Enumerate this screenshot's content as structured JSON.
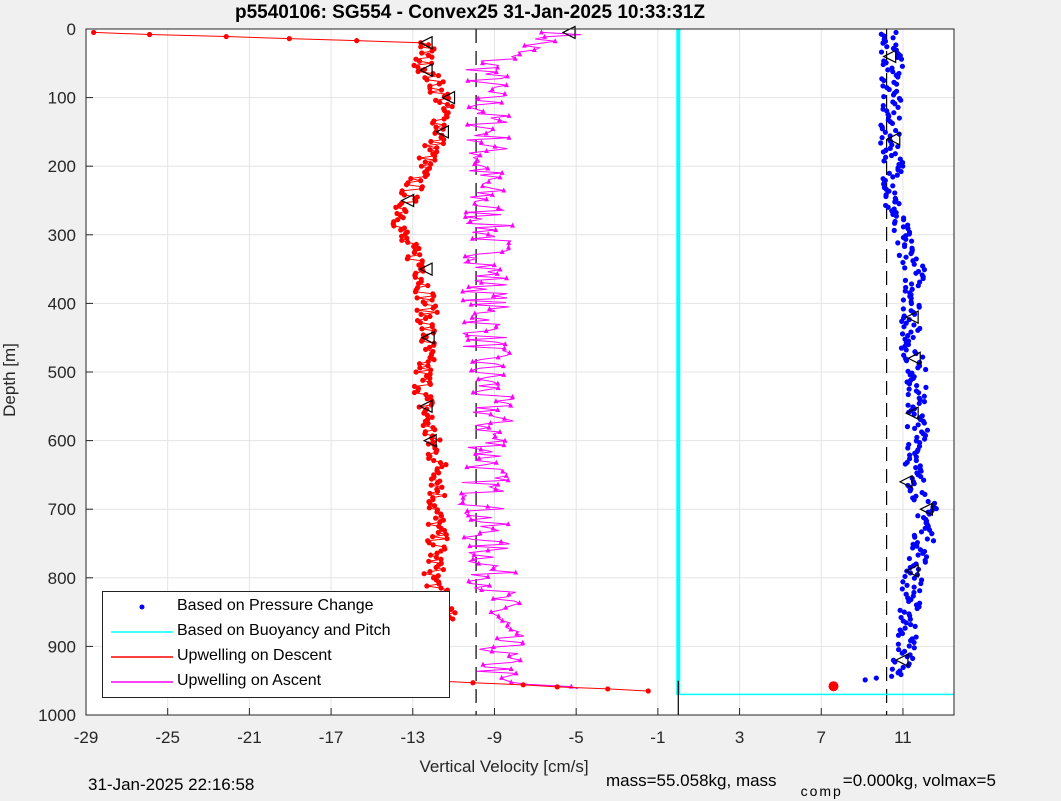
{
  "chart_data": {
    "type": "scatter",
    "title": "p5540106: SG554 - Convex25 31-Jan-2025 10:33:31Z",
    "xlabel": "Vertical Velocity [cm/s]",
    "ylabel": "Depth [m]",
    "xlim": [
      -29,
      13.5
    ],
    "ylim": [
      1000,
      0
    ],
    "xticks": [
      "-29",
      "-25",
      "-21",
      "-17",
      "-13",
      "-9",
      "-5",
      "-1",
      "3",
      "7",
      "11"
    ],
    "xtick_values": [
      -29,
      -25,
      -21,
      -17,
      -13,
      -9,
      -5,
      -1,
      3,
      7,
      11
    ],
    "yticks": [
      "0",
      "100",
      "200",
      "300",
      "400",
      "500",
      "600",
      "700",
      "800",
      "900",
      "1000"
    ],
    "ytick_values": [
      0,
      100,
      200,
      300,
      400,
      500,
      600,
      700,
      800,
      900,
      1000
    ],
    "grid": true,
    "legend_position": "bottom-left",
    "reference_lines": {
      "dashed_x": [
        -9.9,
        10.2
      ],
      "cyan_vertical_x": 0.0,
      "black_vertical_x": 0.0,
      "cyan_bottom_depth": 970
    },
    "series": [
      {
        "name": "Based on Pressure Change",
        "color": "#0000ff",
        "marker": "dot",
        "profile": {
          "depth": [
            0,
            50,
            100,
            150,
            200,
            250,
            300,
            350,
            400,
            450,
            500,
            550,
            600,
            650,
            700,
            750,
            800,
            850,
            900,
            940,
            960
          ],
          "vel": [
            10.3,
            10.5,
            10.4,
            10.3,
            10.6,
            10.4,
            10.9,
            11.6,
            11.5,
            11.3,
            11.7,
            11.6,
            11.8,
            11.5,
            12.2,
            12.0,
            11.5,
            11.3,
            11.2,
            10.8,
            8.0
          ]
        }
      },
      {
        "name": "Based on Buoyancy and Pitch",
        "color": "#00ffff",
        "marker": "line",
        "profile": {
          "depth": [
            0,
            970
          ],
          "vel": [
            0.0,
            0.0
          ]
        }
      },
      {
        "name": "Upwelling on Descent",
        "color": "#ff0000",
        "marker": "circle-line",
        "profile": {
          "depth": [
            5,
            20,
            50,
            100,
            150,
            200,
            250,
            300,
            350,
            400,
            450,
            500,
            550,
            600,
            650,
            700,
            750,
            800,
            850,
            900,
            950,
            965
          ],
          "vel": [
            -29,
            -12.3,
            -12.5,
            -11.5,
            -11.6,
            -12.5,
            -13.3,
            -13.6,
            -12.5,
            -12.3,
            -12.3,
            -12.5,
            -12.4,
            -12.1,
            -11.6,
            -11.9,
            -11.8,
            -12.0,
            -11.4,
            -11.8,
            -12.2,
            -1.0
          ]
        }
      },
      {
        "name": "Upwelling on Ascent",
        "color": "#ff00ff",
        "marker": "triangle-line",
        "profile": {
          "depth": [
            5,
            50,
            100,
            150,
            200,
            250,
            300,
            350,
            400,
            450,
            500,
            550,
            600,
            650,
            700,
            750,
            800,
            850,
            900,
            950,
            965
          ],
          "vel": [
            -5.5,
            -9.3,
            -9.5,
            -9.2,
            -9.6,
            -9.6,
            -9.2,
            -9.3,
            -9.4,
            -9.4,
            -9.5,
            -9.2,
            -9.1,
            -9.4,
            -9.6,
            -9.4,
            -9.1,
            -8.8,
            -8.7,
            -9.0,
            -4.0
          ]
        }
      }
    ]
  },
  "footer": {
    "timestamp": "31-Jan-2025 22:16:58",
    "mass_text": "mass=55.058kg, mass",
    "comp_subscript": "comp",
    "rest_text": "=0.000kg, volmax=5"
  }
}
